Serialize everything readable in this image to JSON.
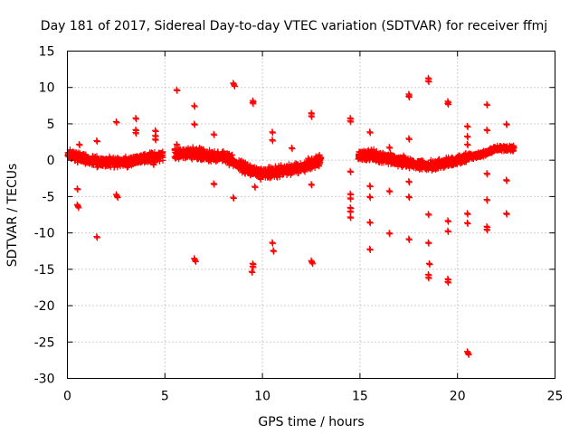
{
  "chart_data": {
    "type": "scatter",
    "title": "Day 181 of 2017, Sidereal Day-to-day VTEC variation (SDTVAR) for receiver ffmj",
    "xlabel": "GPS time / hours",
    "ylabel": "SDTVAR / TECUs",
    "xlim": [
      0,
      25
    ],
    "ylim": [
      -30,
      15
    ],
    "xticks": [
      0,
      5,
      10,
      15,
      20,
      25
    ],
    "yticks": [
      -30,
      -25,
      -20,
      -15,
      -10,
      -5,
      0,
      5,
      10,
      15
    ],
    "grid": true,
    "marker": "+",
    "color": "#ff0000",
    "band_segments": [
      {
        "x0": 0.0,
        "x1": 4.9,
        "shape": [
          [
            0.0,
            0.8
          ],
          [
            1.5,
            -0.2
          ],
          [
            3.0,
            -0.3
          ],
          [
            4.0,
            0.3
          ],
          [
            4.9,
            0.6
          ]
        ],
        "spread": 0.9,
        "count": 700
      },
      {
        "x0": 5.5,
        "x1": 8.2,
        "shape": [
          [
            5.5,
            0.8
          ],
          [
            6.5,
            1.0
          ],
          [
            7.5,
            0.5
          ],
          [
            8.2,
            0.5
          ]
        ],
        "spread": 1.0,
        "count": 400
      },
      {
        "x0": 8.2,
        "x1": 13.0,
        "shape": [
          [
            8.2,
            0.3
          ],
          [
            9.0,
            -1.0
          ],
          [
            10.0,
            -1.8
          ],
          [
            11.0,
            -1.5
          ],
          [
            12.0,
            -1.0
          ],
          [
            13.0,
            0.0
          ]
        ],
        "spread": 1.0,
        "count": 700
      },
      {
        "x0": 14.9,
        "x1": 17.5,
        "shape": [
          [
            14.9,
            0.6
          ],
          [
            15.5,
            0.7
          ],
          [
            16.5,
            0.2
          ],
          [
            17.5,
            -0.3
          ]
        ],
        "spread": 1.0,
        "count": 400
      },
      {
        "x0": 17.5,
        "x1": 20.5,
        "shape": [
          [
            17.5,
            -0.4
          ],
          [
            18.5,
            -0.8
          ],
          [
            19.5,
            -0.3
          ],
          [
            20.5,
            0.3
          ]
        ],
        "spread": 0.9,
        "count": 450
      },
      {
        "x0": 20.5,
        "x1": 22.9,
        "shape": [
          [
            20.5,
            0.4
          ],
          [
            21.5,
            1.0
          ],
          [
            22.0,
            1.6
          ],
          [
            22.9,
            1.6
          ]
        ],
        "spread": 0.5,
        "count": 350
      }
    ],
    "outliers": [
      [
        0.6,
        2.2
      ],
      [
        0.5,
        -3.9
      ],
      [
        0.5,
        -6.1
      ],
      [
        0.55,
        -6.4
      ],
      [
        1.5,
        2.7
      ],
      [
        1.5,
        -10.5
      ],
      [
        2.5,
        5.3
      ],
      [
        2.5,
        -4.7
      ],
      [
        2.55,
        -5.0
      ],
      [
        3.5,
        5.8
      ],
      [
        3.5,
        4.2
      ],
      [
        3.5,
        3.8
      ],
      [
        4.5,
        4.1
      ],
      [
        4.5,
        3.4
      ],
      [
        4.5,
        2.9
      ],
      [
        4.4,
        -0.5
      ],
      [
        5.6,
        9.7
      ],
      [
        5.6,
        2.2
      ],
      [
        6.5,
        7.5
      ],
      [
        6.5,
        5.0
      ],
      [
        6.5,
        -13.5
      ],
      [
        6.55,
        -13.8
      ],
      [
        7.5,
        3.6
      ],
      [
        7.5,
        -3.2
      ],
      [
        8.5,
        10.6
      ],
      [
        8.55,
        10.3
      ],
      [
        8.5,
        -5.1
      ],
      [
        9.5,
        8.2
      ],
      [
        9.5,
        7.9
      ],
      [
        9.5,
        -14.2
      ],
      [
        9.5,
        -14.6
      ],
      [
        9.45,
        -15.3
      ],
      [
        9.6,
        -3.6
      ],
      [
        10.5,
        3.9
      ],
      [
        10.5,
        2.8
      ],
      [
        10.5,
        -11.3
      ],
      [
        10.55,
        -12.4
      ],
      [
        11.5,
        1.7
      ],
      [
        12.5,
        6.5
      ],
      [
        12.5,
        6.1
      ],
      [
        12.5,
        -3.3
      ],
      [
        12.5,
        -13.8
      ],
      [
        12.55,
        -14.1
      ],
      [
        14.5,
        5.8
      ],
      [
        14.5,
        5.4
      ],
      [
        14.5,
        -1.5
      ],
      [
        14.5,
        -4.6
      ],
      [
        14.5,
        -5.2
      ],
      [
        14.5,
        -6.5
      ],
      [
        14.5,
        -7.0
      ],
      [
        14.5,
        -7.8
      ],
      [
        15.5,
        3.9
      ],
      [
        15.5,
        -3.5
      ],
      [
        15.5,
        -5.0
      ],
      [
        15.5,
        -8.5
      ],
      [
        15.5,
        -12.2
      ],
      [
        16.5,
        1.8
      ],
      [
        16.5,
        -4.2
      ],
      [
        16.5,
        -10.0
      ],
      [
        17.5,
        9.1
      ],
      [
        17.5,
        8.8
      ],
      [
        17.5,
        3.0
      ],
      [
        17.5,
        -2.9
      ],
      [
        17.5,
        -5.0
      ],
      [
        17.5,
        -10.8
      ],
      [
        18.5,
        11.3
      ],
      [
        18.5,
        10.9
      ],
      [
        18.5,
        -7.4
      ],
      [
        18.5,
        -11.3
      ],
      [
        18.55,
        -14.2
      ],
      [
        18.5,
        -15.7
      ],
      [
        18.5,
        -16.1
      ],
      [
        19.5,
        8.1
      ],
      [
        19.5,
        7.8
      ],
      [
        19.5,
        -8.3
      ],
      [
        19.5,
        -9.7
      ],
      [
        19.5,
        -16.3
      ],
      [
        19.5,
        -16.7
      ],
      [
        20.5,
        4.7
      ],
      [
        20.5,
        3.3
      ],
      [
        20.5,
        2.2
      ],
      [
        20.5,
        -7.3
      ],
      [
        20.5,
        -8.6
      ],
      [
        20.5,
        -26.3
      ],
      [
        20.55,
        -26.6
      ],
      [
        21.5,
        7.7
      ],
      [
        21.5,
        4.2
      ],
      [
        21.5,
        -1.8
      ],
      [
        21.5,
        -5.4
      ],
      [
        21.5,
        -9.1
      ],
      [
        21.5,
        -9.5
      ],
      [
        22.5,
        5.0
      ],
      [
        22.5,
        -2.7
      ],
      [
        22.5,
        -7.3
      ]
    ]
  }
}
